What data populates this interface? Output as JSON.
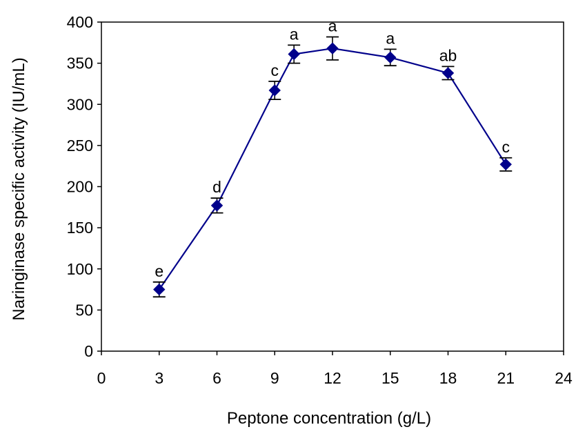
{
  "chart_data": {
    "type": "line",
    "title": "",
    "xlabel": "Peptone concentration (g/L)",
    "ylabel": "Naringinase specific activity (IU/mL)",
    "xlim": [
      0,
      24
    ],
    "ylim": [
      0,
      400
    ],
    "x_ticks": [
      0,
      3,
      6,
      9,
      12,
      15,
      18,
      21,
      24
    ],
    "y_ticks": [
      0,
      50,
      100,
      150,
      200,
      250,
      300,
      350,
      400
    ],
    "grid": false,
    "legend": "none",
    "series": [
      {
        "color": "#00008B",
        "marker": "diamond",
        "points": [
          {
            "x": 3,
            "y": 75,
            "err": 9,
            "label": "e"
          },
          {
            "x": 6,
            "y": 177,
            "err": 9,
            "label": "d"
          },
          {
            "x": 9,
            "y": 317,
            "err": 11,
            "label": "c"
          },
          {
            "x": 10,
            "y": 361,
            "err": 11,
            "label": "a"
          },
          {
            "x": 12,
            "y": 368,
            "err": 14,
            "label": "a"
          },
          {
            "x": 15,
            "y": 357,
            "err": 10,
            "label": "a"
          },
          {
            "x": 18,
            "y": 338,
            "err": 8,
            "label": "ab"
          },
          {
            "x": 21,
            "y": 227,
            "err": 8,
            "label": "c"
          }
        ]
      }
    ]
  }
}
